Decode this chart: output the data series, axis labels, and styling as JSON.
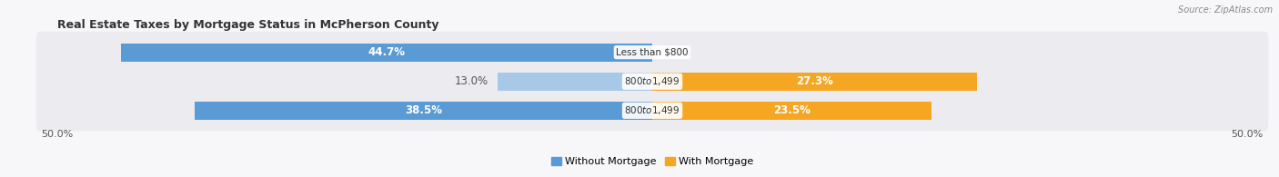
{
  "title": "Real Estate Taxes by Mortgage Status in McPherson County",
  "source": "Source: ZipAtlas.com",
  "rows": [
    {
      "label": "Less than $800",
      "without_mortgage": 44.7,
      "with_mortgage": 0.0
    },
    {
      "label": "$800 to $1,499",
      "without_mortgage": 13.0,
      "with_mortgage": 27.3
    },
    {
      "label": "$800 to $1,499",
      "without_mortgage": 38.5,
      "with_mortgage": 23.5
    }
  ],
  "color_without": "#5b9bd5",
  "color_with": "#f5a623",
  "color_without_light": "#a8c8e8",
  "color_with_light": "#f9d4a0",
  "axis_limit": 50.0,
  "background_row": "#ebebf0",
  "background_fig": "#f7f7fa",
  "bar_height": 0.62,
  "legend_label_without": "Without Mortgage",
  "legend_label_with": "With Mortgage",
  "label_outside_threshold": 15.0
}
